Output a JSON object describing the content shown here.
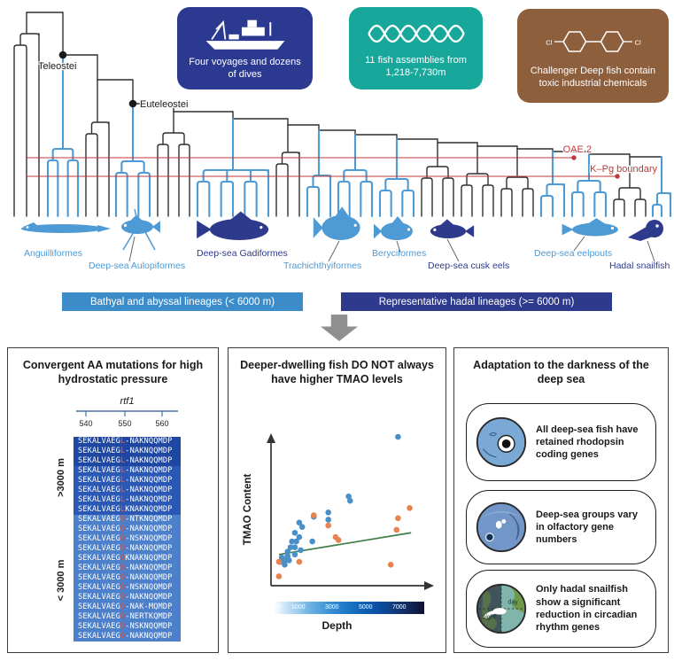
{
  "colors": {
    "bathyal": "#4d9ad5",
    "hadal": "#2e3a8c",
    "branch": "#2f2f2f",
    "event_red": "#c0393b",
    "trend_green": "#3e7d4a",
    "scatter_blue": "#4a90c8",
    "scatter_orange": "#e8824e"
  },
  "header": {
    "info_boxes": [
      {
        "id": "voyages",
        "text": "Four voyages and dozens of dives",
        "bg": "#2b3a90",
        "icon": "research-ship-icon"
      },
      {
        "id": "assemblies",
        "text": "11 fish assemblies from 1,218-7,730m",
        "bg": "#17a89b",
        "icon": "dna-helix-icon"
      },
      {
        "id": "chemicals",
        "text": "Challenger Deep fish contain toxic industrial chemicals",
        "bg": "#8e5f3d",
        "icon": "pcb-molecule-icon",
        "icon_text": "Cl"
      }
    ]
  },
  "tree": {
    "node_labels": [
      {
        "label": "Teleostei"
      },
      {
        "label": "Euteleostei"
      }
    ],
    "event_lines": [
      {
        "label": "OAE 2"
      },
      {
        "label": "K–Pg boundary"
      }
    ],
    "groups": [
      {
        "tips": 3,
        "color": "black"
      },
      {
        "tips": 4,
        "color": "bathyal",
        "lineage": "Anguilliformes"
      },
      {
        "tips": 3,
        "color": "black"
      },
      {
        "tips": 4,
        "color": "bathyal",
        "lineage": "Deep-sea Aulopiformes"
      },
      {
        "tips": 4,
        "color": "black"
      },
      {
        "tips": 7,
        "color": "bathyal",
        "lineage": "Deep-sea Gadiformes"
      },
      {
        "tips": 3,
        "color": "black"
      },
      {
        "tips": 3,
        "color": "bathyal"
      },
      {
        "tips": 4,
        "color": "bathyal",
        "lineage": "Trachichthyiformes"
      },
      {
        "tips": 4,
        "color": "bathyal",
        "lineage": "Beryciformes"
      },
      {
        "tips": 4,
        "color": "black",
        "lineage": "Deep-sea cusk eels"
      },
      {
        "tips": 4,
        "color": "black"
      },
      {
        "tips": 4,
        "color": "black"
      },
      {
        "tips": 3,
        "color": "bathyal"
      },
      {
        "tips": 4,
        "color": "bathyal",
        "lineage": "Deep-sea eelpouts"
      },
      {
        "tips": 4,
        "color": "black"
      },
      {
        "tips": 3,
        "color": "bathyal",
        "lineage": "Hadal snailfish"
      }
    ],
    "fishes": [
      {
        "label": "Anguilliformes",
        "color": "bathyal"
      },
      {
        "label": "Deep-sea Aulopiformes",
        "color": "bathyal"
      },
      {
        "label": "Deep-sea Gadiformes",
        "color": "hadal"
      },
      {
        "label": "Trachichthyiformes",
        "color": "bathyal"
      },
      {
        "label": "Beryciformes",
        "color": "bathyal"
      },
      {
        "label": "Deep-sea cusk eels",
        "color": "hadal"
      },
      {
        "label": "Deep-sea eelpouts",
        "color": "bathyal"
      },
      {
        "label": "Hadal snailfish",
        "color": "hadal"
      }
    ]
  },
  "legend": [
    {
      "label": "Bathyal and abyssal lineages (< 6000 m)",
      "bg": "#3d8cca"
    },
    {
      "label": "Representative hadal lineages (>= 6000 m)",
      "bg": "#2e3a8c"
    }
  ],
  "panels": {
    "mutations": {
      "title": "Convergent AA mutations for high hydrostatic pressure",
      "gene": "rtf1",
      "scale_ticks": [
        "540",
        "550",
        "560"
      ],
      "row_colors": {
        "deep_dark": "#1d47a3",
        "deep": "#2a58b4",
        "shallow": "#4c80ca"
      },
      "groups": [
        {
          "label": ">3000 m",
          "rows": [
            {
              "pre": "SEKALVAEG",
              "mut": "L",
              "post": "-NAKNQQMDP"
            },
            {
              "pre": "SEKALVAEG",
              "mut": "L",
              "post": "-NAKNQQMDP"
            },
            {
              "pre": "SEKALVAEG",
              "mut": "L",
              "post": "-NAKNQQMDP"
            },
            {
              "pre": "SEKALVAEG",
              "mut": "L",
              "post": "-NAKNQQMDP"
            },
            {
              "pre": "SEKALVAEG",
              "mut": "L",
              "post": "-NAKNQQMDP"
            },
            {
              "pre": "SEKALVAEG",
              "mut": "L",
              "post": "-NAKNQQMDP"
            },
            {
              "pre": "SEKALVAEG",
              "mut": "L",
              "post": "-NAKNQQMDP"
            },
            {
              "pre": "SEKALVAEG",
              "mut": "L",
              "post": "KNAKNQQMDP"
            }
          ]
        },
        {
          "label": "< 3000 m",
          "rows": [
            {
              "pre": "SEKALVAEG",
              "mut": "Q",
              "post": "-NTKNQQMDP"
            },
            {
              "pre": "SEKALVAEG",
              "mut": "Q",
              "post": "-NAKNQQMDP"
            },
            {
              "pre": "SEKALVAEG",
              "mut": "Q",
              "post": "-NSKNQQMDP"
            },
            {
              "pre": "SEKALVAEG",
              "mut": "Q",
              "post": "-NAKNQQMDP"
            },
            {
              "pre": "SEKALVAEG",
              "mut": "Q",
              "post": "KNAKNQQMDP"
            },
            {
              "pre": "SEKALVAEG",
              "mut": "Q",
              "post": "-NAKNQQMDP"
            },
            {
              "pre": "SEKALVAEG",
              "mut": "Q",
              "post": "-NAKNQQMDP"
            },
            {
              "pre": "SEKALVAEG",
              "mut": "Q",
              "post": "-NSKNQQMDP"
            },
            {
              "pre": "SEKALVAEG",
              "mut": "Q",
              "post": "-NAKNQQMDP"
            },
            {
              "pre": "SEKALVAEG",
              "mut": "Q",
              "post": "-NAK-MQMDP"
            },
            {
              "pre": "SEKALVAEG",
              "mut": "Q",
              "post": "-NERTKQMDP"
            },
            {
              "pre": "SEKALVAEG",
              "mut": "Q",
              "post": "-NSKNQQMDP"
            },
            {
              "pre": "SEKALVAEG",
              "mut": "Q",
              "post": "-NAKNQQMDP"
            }
          ]
        }
      ]
    },
    "tmao": {
      "title": "Deeper-dwelling fish DO NOT always have higher TMAO levels",
      "ylabel": "TMAO Content",
      "xlabel": "Depth",
      "colorbar_labels": [
        "0",
        "1000",
        "3000",
        "5000",
        "7000"
      ],
      "chart_data": {
        "type": "scatter",
        "xlabel": "Depth",
        "ylabel": "TMAO Content",
        "axes_numeric": false,
        "series": [
          {
            "name": "bathyal_abyssal",
            "color": "#4a90c8",
            "points": [
              [
                0.85,
                1.0
              ],
              [
                0.51,
                0.59
              ],
              [
                0.52,
                0.56
              ],
              [
                0.37,
                0.48
              ],
              [
                0.37,
                0.43
              ],
              [
                0.27,
                0.45
              ],
              [
                0.17,
                0.41
              ],
              [
                0.19,
                0.38
              ],
              [
                0.14,
                0.34
              ],
              [
                0.17,
                0.31
              ],
              [
                0.15,
                0.28
              ],
              [
                0.12,
                0.28
              ],
              [
                0.26,
                0.28
              ],
              [
                0.11,
                0.24
              ],
              [
                0.14,
                0.24
              ],
              [
                0.18,
                0.22
              ],
              [
                0.09,
                0.21
              ],
              [
                0.14,
                0.19
              ],
              [
                0.09,
                0.18
              ],
              [
                0.05,
                0.17
              ],
              [
                0.05,
                0.15
              ],
              [
                0.07,
                0.15
              ],
              [
                0.1,
                0.15
              ],
              [
                0.07,
                0.12
              ],
              [
                0.04,
                0.14
              ]
            ]
          },
          {
            "name": "hadal",
            "color": "#e8824e",
            "points": [
              [
                0.03,
                0.14
              ],
              [
                0.03,
                0.04
              ],
              [
                0.17,
                0.14
              ],
              [
                0.27,
                0.46
              ],
              [
                0.37,
                0.39
              ],
              [
                0.42,
                0.31
              ],
              [
                0.44,
                0.29
              ],
              [
                0.8,
                0.12
              ],
              [
                0.84,
                0.36
              ],
              [
                0.85,
                0.44
              ],
              [
                0.93,
                0.51
              ]
            ]
          }
        ],
        "trend_line": {
          "color": "#3e7d4a",
          "from": [
            0.03,
            0.19
          ],
          "to": [
            0.94,
            0.34
          ]
        },
        "depth_scale": {
          "labels": [
            "0",
            "1000",
            "3000",
            "5000",
            "7000"
          ],
          "unit": "m"
        }
      }
    },
    "darkness": {
      "title": "Adaptation to the darkness of the deep sea",
      "items": [
        {
          "icon": "rhodopsin-eye-icon",
          "text": "All deep-sea fish have retained rhodopsin coding genes"
        },
        {
          "icon": "olfactory-fish-icon",
          "text": "Deep-sea groups vary in olfactory gene numbers"
        },
        {
          "icon": "day-night-globe-icon",
          "text": "Only hadal snailfish show a significant reduction in circadian rhythm genes",
          "icon_labels": {
            "day": "day",
            "night": "night"
          }
        }
      ]
    }
  }
}
